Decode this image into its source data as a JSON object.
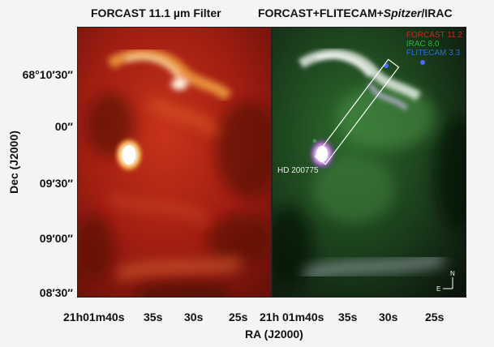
{
  "titles": {
    "left": "FORCAST 11.1 µm Filter",
    "right_prefix": "FORCAST+FLITECAM+",
    "right_italic": "Spitzer",
    "right_suffix": "/IRAC"
  },
  "axes": {
    "ylabel": "Dec (J2000)",
    "xlabel": "RA (J2000)",
    "yticks": [
      "68°10′30″",
      "00″",
      "09′30″",
      "09′00″",
      "08′30″"
    ],
    "xticks_left": [
      "21h01m40s",
      "35s",
      "30s",
      "25s"
    ],
    "xticks_right": [
      "21h 01m40s",
      "35s",
      "30s",
      "25s"
    ]
  },
  "legend": [
    {
      "label": "FORCAST 11.2",
      "color": "#d82020"
    },
    {
      "label": "IRAC 8.0",
      "color": "#2fb040"
    },
    {
      "label": "FLITECAM 3.3",
      "color": "#2a6ad8"
    }
  ],
  "annotations": {
    "star": "HD 200775",
    "compass_n": "N",
    "compass_e": "E"
  }
}
